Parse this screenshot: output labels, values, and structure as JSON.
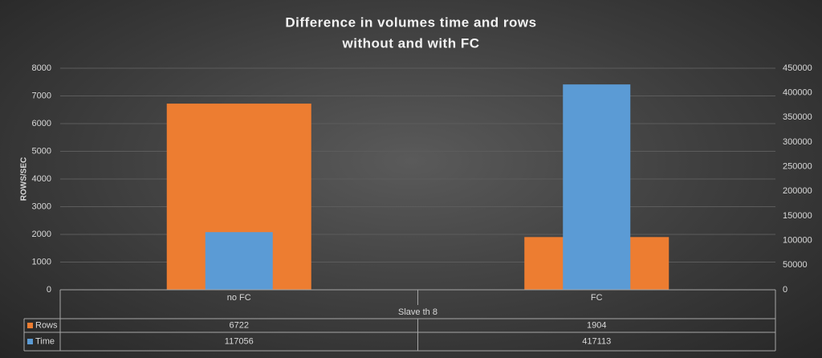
{
  "chart_data": {
    "type": "bar",
    "title": [
      "Difference in volumes time and rows",
      "without and with FC"
    ],
    "ylabel": "ROWS/SEC",
    "group_label": "Slave th 8",
    "categories": [
      "no FC",
      "FC"
    ],
    "series": [
      {
        "name": "Rows",
        "color": "#ed7d31",
        "values": [
          6722,
          1904
        ]
      },
      {
        "name": "Time",
        "color": "#5b9bd5",
        "values": [
          117056,
          417113
        ],
        "axis": "y2"
      }
    ],
    "ylim": [
      0,
      8000
    ],
    "yticks": [
      0,
      1000,
      2000,
      3000,
      4000,
      5000,
      6000,
      7000,
      8000
    ],
    "y2lim": [
      0,
      450000
    ],
    "y2ticks": [
      0,
      50000,
      100000,
      150000,
      200000,
      250000,
      300000,
      350000,
      400000,
      450000
    ],
    "grid": true
  }
}
